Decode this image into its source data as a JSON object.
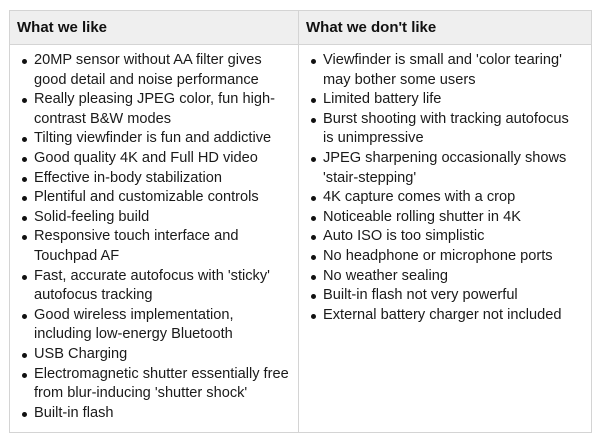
{
  "headers": {
    "likes": "What we like",
    "dislikes": "What we don't like"
  },
  "likes": [
    "20MP sensor without AA filter gives good detail and noise performance",
    "Really pleasing JPEG color, fun high-contrast B&W modes",
    "Tilting viewfinder is fun and addictive",
    "Good quality 4K and Full HD video",
    "Effective in-body stabilization",
    "Plentiful and customizable controls",
    "Solid-feeling build",
    "Responsive touch interface and Touchpad AF",
    "Fast, accurate autofocus with 'sticky' autofocus tracking",
    "Good wireless implementation, including low-energy Bluetooth",
    "USB Charging",
    "Electromagnetic shutter essentially free from blur-inducing 'shutter shock'",
    "Built-in flash"
  ],
  "dislikes": [
    "Viewfinder is small and 'color tearing' may bother some users",
    "Limited battery life",
    "Burst shooting with tracking autofocus is unimpressive",
    "JPEG sharpening occasionally shows 'stair-stepping'",
    "4K capture comes with a crop",
    "Noticeable rolling shutter in 4K",
    "Auto ISO is too simplistic",
    "No headphone or microphone ports",
    "No weather sealing",
    "Built-in flash not very powerful",
    "External battery charger not included"
  ]
}
